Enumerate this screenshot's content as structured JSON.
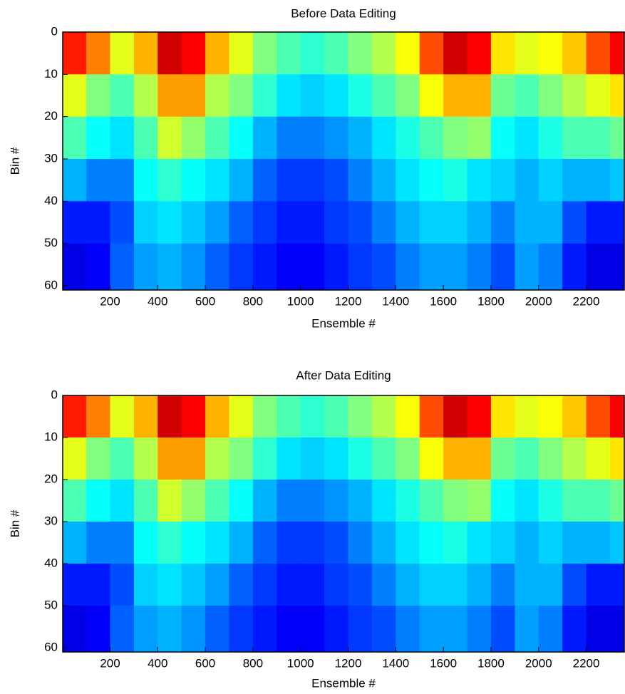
{
  "chart_data": [
    {
      "type": "heatmap",
      "title": "Before Data Editing",
      "xlabel": "Ensemble #",
      "ylabel": "Bin #",
      "colormap": "jet",
      "xlim": [
        1,
        2360
      ],
      "ylim": [
        0,
        61
      ],
      "y_inverted": true,
      "xticks": [
        200,
        400,
        600,
        800,
        1000,
        1200,
        1400,
        1600,
        1800,
        2000,
        2200
      ],
      "yticks": [
        0,
        10,
        20,
        30,
        40,
        50,
        60
      ],
      "x_edges": [
        0,
        100,
        200,
        300,
        400,
        500,
        600,
        700,
        800,
        900,
        1000,
        1100,
        1200,
        1300,
        1400,
        1500,
        1600,
        1700,
        1800,
        1900,
        2000,
        2100,
        2200,
        2300,
        2400
      ],
      "y_edges": [
        0,
        10,
        20,
        30,
        40,
        50,
        61
      ],
      "values": [
        [
          0.85,
          0.75,
          0.6,
          0.7,
          0.92,
          0.88,
          0.7,
          0.6,
          0.5,
          0.45,
          0.42,
          0.45,
          0.5,
          0.55,
          0.62,
          0.8,
          0.92,
          0.88,
          0.65,
          0.6,
          0.62,
          0.68,
          0.8,
          0.88
        ],
        [
          0.6,
          0.5,
          0.45,
          0.55,
          0.72,
          0.72,
          0.55,
          0.5,
          0.42,
          0.35,
          0.33,
          0.35,
          0.4,
          0.45,
          0.5,
          0.62,
          0.7,
          0.7,
          0.48,
          0.45,
          0.5,
          0.55,
          0.6,
          0.65
        ],
        [
          0.45,
          0.38,
          0.35,
          0.45,
          0.58,
          0.52,
          0.45,
          0.38,
          0.3,
          0.25,
          0.25,
          0.27,
          0.3,
          0.35,
          0.4,
          0.45,
          0.5,
          0.52,
          0.38,
          0.35,
          0.4,
          0.45,
          0.45,
          0.48
        ],
        [
          0.3,
          0.25,
          0.25,
          0.38,
          0.42,
          0.38,
          0.35,
          0.3,
          0.22,
          0.18,
          0.18,
          0.2,
          0.25,
          0.3,
          0.35,
          0.38,
          0.4,
          0.35,
          0.33,
          0.3,
          0.33,
          0.3,
          0.3,
          0.32
        ],
        [
          0.15,
          0.15,
          0.2,
          0.33,
          0.35,
          0.32,
          0.28,
          0.22,
          0.18,
          0.15,
          0.15,
          0.18,
          0.2,
          0.25,
          0.3,
          0.33,
          0.33,
          0.3,
          0.25,
          0.3,
          0.3,
          0.2,
          0.15,
          0.15
        ],
        [
          0.1,
          0.12,
          0.22,
          0.28,
          0.3,
          0.27,
          0.22,
          0.18,
          0.15,
          0.12,
          0.12,
          0.15,
          0.18,
          0.2,
          0.25,
          0.28,
          0.28,
          0.25,
          0.2,
          0.28,
          0.25,
          0.15,
          0.1,
          0.1
        ]
      ]
    },
    {
      "type": "heatmap",
      "title": "After Data Editing",
      "xlabel": "Ensemble #",
      "ylabel": "Bin #",
      "colormap": "jet",
      "xlim": [
        1,
        2360
      ],
      "ylim": [
        0,
        61
      ],
      "y_inverted": true,
      "xticks": [
        200,
        400,
        600,
        800,
        1000,
        1200,
        1400,
        1600,
        1800,
        2000,
        2200
      ],
      "yticks": [
        0,
        10,
        20,
        30,
        40,
        50,
        60
      ],
      "x_edges": [
        0,
        100,
        200,
        300,
        400,
        500,
        600,
        700,
        800,
        900,
        1000,
        1100,
        1200,
        1300,
        1400,
        1500,
        1600,
        1700,
        1800,
        1900,
        2000,
        2100,
        2200,
        2300,
        2400
      ],
      "y_edges": [
        0,
        10,
        20,
        30,
        40,
        50,
        61
      ],
      "values": [
        [
          0.85,
          0.75,
          0.6,
          0.7,
          0.92,
          0.88,
          0.7,
          0.6,
          0.5,
          0.45,
          0.42,
          0.45,
          0.5,
          0.55,
          0.62,
          0.8,
          0.92,
          0.88,
          0.65,
          0.6,
          0.62,
          0.68,
          0.8,
          0.88
        ],
        [
          0.6,
          0.5,
          0.45,
          0.55,
          0.72,
          0.72,
          0.55,
          0.5,
          0.42,
          0.35,
          0.33,
          0.35,
          0.4,
          0.45,
          0.5,
          0.62,
          0.7,
          0.7,
          0.48,
          0.45,
          0.5,
          0.55,
          0.6,
          0.65
        ],
        [
          0.45,
          0.38,
          0.35,
          0.45,
          0.58,
          0.52,
          0.45,
          0.38,
          0.3,
          0.25,
          0.25,
          0.27,
          0.3,
          0.35,
          0.4,
          0.45,
          0.5,
          0.52,
          0.38,
          0.35,
          0.4,
          0.45,
          0.45,
          0.48
        ],
        [
          0.3,
          0.25,
          0.25,
          0.38,
          0.42,
          0.38,
          0.35,
          0.3,
          0.22,
          0.18,
          0.18,
          0.2,
          0.25,
          0.3,
          0.35,
          0.38,
          0.4,
          0.35,
          0.33,
          0.3,
          0.33,
          0.3,
          0.3,
          0.32
        ],
        [
          0.15,
          0.15,
          0.2,
          0.33,
          0.35,
          0.32,
          0.28,
          0.22,
          0.18,
          0.15,
          0.15,
          0.18,
          0.2,
          0.25,
          0.3,
          0.33,
          0.33,
          0.3,
          0.25,
          0.3,
          0.3,
          0.2,
          0.15,
          0.15
        ],
        [
          0.1,
          0.12,
          0.22,
          0.28,
          0.3,
          0.27,
          0.22,
          0.18,
          0.15,
          0.12,
          0.12,
          0.15,
          0.18,
          0.2,
          0.25,
          0.28,
          0.28,
          0.25,
          0.2,
          0.28,
          0.25,
          0.15,
          0.1,
          0.1
        ]
      ]
    }
  ]
}
